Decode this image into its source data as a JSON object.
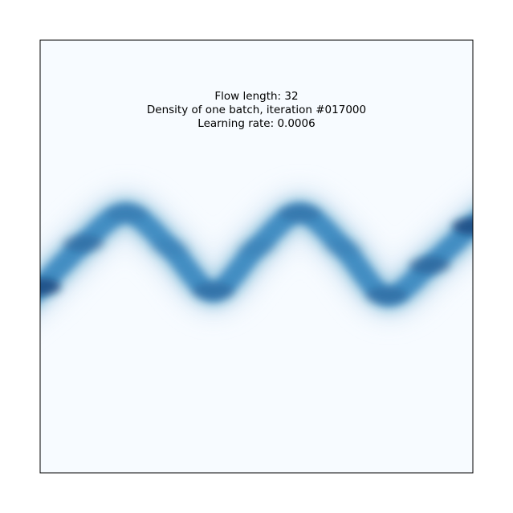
{
  "chart_data": {
    "type": "heatmap",
    "title_lines": [
      "Flow length: 32",
      "Density of one batch, iteration #017000",
      "Learning rate: 0.0006"
    ],
    "xlabel": "",
    "ylabel": "",
    "ticks": "none",
    "grid": false,
    "legend": "none",
    "colormap": "Blues",
    "colors": {
      "low": "#f7fbff",
      "high": "#08306b",
      "frame": "#000000"
    },
    "xlim": [
      0,
      1
    ],
    "ylim": [
      0,
      1
    ],
    "density_path": {
      "description_of_shape": "sinusoidal band",
      "x": [
        0.0,
        0.1,
        0.2,
        0.3,
        0.4,
        0.5,
        0.6,
        0.7,
        0.8,
        0.9,
        1.0
      ],
      "y": [
        0.43,
        0.53,
        0.6,
        0.52,
        0.42,
        0.52,
        0.6,
        0.52,
        0.41,
        0.48,
        0.57
      ],
      "intensity": [
        0.95,
        0.7,
        0.6,
        0.55,
        0.7,
        0.55,
        0.65,
        0.55,
        0.7,
        0.75,
        0.95
      ]
    }
  }
}
